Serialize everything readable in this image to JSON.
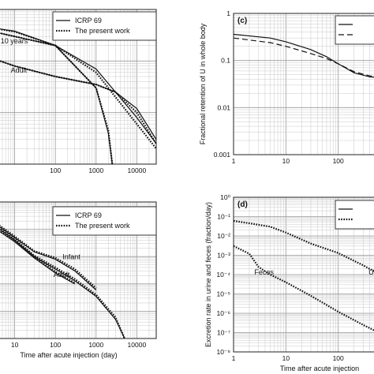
{
  "chart_data": [
    {
      "id": "a",
      "type": "line",
      "panel_label": "",
      "xscale": "log",
      "yscale": "log",
      "xlim": [
        1,
        30000
      ],
      "ylim": [
        0.001,
        1
      ],
      "x_ticks": [
        {
          "value": 100,
          "label": "100"
        },
        {
          "value": 1000,
          "label": "1000"
        },
        {
          "value": 10000,
          "label": "10000"
        }
      ],
      "y_ticks": [],
      "xlabel": "",
      "ylabel": "",
      "grid": true,
      "legend": {
        "placement": "top-right",
        "entries": [
          {
            "label": "ICRP 69",
            "style": "solid"
          },
          {
            "label": "The present work",
            "style": "dotted"
          }
        ]
      },
      "annotations": [
        {
          "text": "10 years",
          "at": [
            4.5,
            0.22
          ]
        },
        {
          "text": "Adult",
          "at": [
            8,
            0.06
          ]
        }
      ],
      "series": [
        {
          "style": "solid",
          "points": [
            [
              1,
              0.5
            ],
            [
              10,
              0.38
            ],
            [
              100,
              0.2
            ],
            [
              1000,
              0.03
            ],
            [
              2000,
              0.004
            ],
            [
              2500,
              0.001
            ]
          ]
        },
        {
          "style": "dotted",
          "points": [
            [
              1,
              0.5
            ],
            [
              10,
              0.37
            ],
            [
              100,
              0.2
            ],
            [
              1000,
              0.03
            ],
            [
              2000,
              0.0045
            ],
            [
              2500,
              0.001
            ]
          ]
        },
        {
          "style": "solid",
          "points": [
            [
              1,
              0.45
            ],
            [
              10,
              0.3
            ],
            [
              100,
              0.2
            ],
            [
              1000,
              0.07
            ],
            [
              3000,
              0.025
            ],
            [
              10000,
              0.008
            ],
            [
              30000,
              0.0025
            ]
          ]
        },
        {
          "style": "dotted",
          "points": [
            [
              1,
              0.45
            ],
            [
              10,
              0.3
            ],
            [
              100,
              0.2
            ],
            [
              1000,
              0.06
            ],
            [
              3000,
              0.02
            ],
            [
              10000,
              0.006
            ],
            [
              30000,
              0.002
            ]
          ]
        },
        {
          "style": "solid",
          "points": [
            [
              1,
              0.15
            ],
            [
              10,
              0.08
            ],
            [
              100,
              0.05
            ],
            [
              1000,
              0.035
            ],
            [
              3000,
              0.025
            ],
            [
              10000,
              0.012
            ],
            [
              30000,
              0.003
            ]
          ]
        },
        {
          "style": "dotted",
          "points": [
            [
              1,
              0.15
            ],
            [
              10,
              0.08
            ],
            [
              100,
              0.05
            ],
            [
              1000,
              0.035
            ],
            [
              3000,
              0.025
            ],
            [
              10000,
              0.01
            ],
            [
              30000,
              0.0025
            ]
          ]
        }
      ]
    },
    {
      "id": "c",
      "type": "line",
      "panel_label": "(c)",
      "xscale": "log",
      "yscale": "log",
      "xlim": [
        1,
        1000
      ],
      "ylim": [
        0.001,
        1
      ],
      "x_ticks": [
        {
          "value": 1,
          "label": "1"
        },
        {
          "value": 10,
          "label": "10"
        },
        {
          "value": 100,
          "label": "100"
        }
      ],
      "y_ticks": [
        {
          "value": 0.001,
          "label": "0.001"
        },
        {
          "value": 0.01,
          "label": "0.01"
        },
        {
          "value": 0.1,
          "label": "0.1"
        },
        {
          "value": 1,
          "label": "1"
        }
      ],
      "xlabel": "",
      "ylabel": "Fractional retention of U in whole body",
      "grid": true,
      "legend": {
        "placement": "top-right",
        "entries": [
          {
            "label": "",
            "style": "solid"
          },
          {
            "label": "",
            "style": "dashed"
          }
        ]
      },
      "annotations": [],
      "series": [
        {
          "style": "solid",
          "points": [
            [
              1,
              0.36
            ],
            [
              5,
              0.3
            ],
            [
              10,
              0.25
            ],
            [
              30,
              0.17
            ],
            [
              60,
              0.12
            ],
            [
              100,
              0.085
            ],
            [
              200,
              0.055
            ],
            [
              400,
              0.045
            ],
            [
              1000,
              0.042
            ]
          ]
        },
        {
          "style": "dashed",
          "points": [
            [
              1,
              0.3
            ],
            [
              5,
              0.24
            ],
            [
              10,
              0.2
            ],
            [
              30,
              0.14
            ],
            [
              60,
              0.11
            ],
            [
              100,
              0.085
            ],
            [
              200,
              0.058
            ],
            [
              400,
              0.047
            ],
            [
              1000,
              0.043
            ]
          ]
        }
      ]
    },
    {
      "id": "b",
      "type": "line",
      "panel_label": "",
      "xscale": "log",
      "yscale": "log",
      "xlim": [
        1,
        30000
      ],
      "ylim": [
        1e-05,
        1
      ],
      "x_ticks": [
        {
          "value": 1,
          "label": "0"
        },
        {
          "value": 10,
          "label": "10"
        },
        {
          "value": 100,
          "label": "100"
        },
        {
          "value": 1000,
          "label": "1000"
        },
        {
          "value": 10000,
          "label": "10000"
        }
      ],
      "y_ticks": [],
      "xlabel": "Time after acute injection (day)",
      "ylabel": "",
      "grid": true,
      "legend": {
        "placement": "top-right",
        "entries": [
          {
            "label": "ICRP 69",
            "style": "solid"
          },
          {
            "label": "The present  work",
            "style": "dotted"
          }
        ]
      },
      "annotations": [
        {
          "text": "Infant",
          "at": [
            150,
            0.008
          ]
        },
        {
          "text": "Adult",
          "at": [
            90,
            0.0018
          ]
        },
        {
          "text": "rears",
          "at": [
            1,
            0.00035
          ]
        }
      ],
      "series": [
        {
          "style": "solid",
          "points": [
            [
              1,
              0.3
            ],
            [
              3,
              0.15
            ],
            [
              10,
              0.04
            ],
            [
              30,
              0.01
            ],
            [
              100,
              0.0035
            ],
            [
              300,
              0.0013
            ],
            [
              1000,
              0.00035
            ],
            [
              3000,
              5e-05
            ],
            [
              5000,
              1e-05
            ]
          ]
        },
        {
          "style": "dotted",
          "points": [
            [
              1,
              0.3
            ],
            [
              3,
              0.16
            ],
            [
              10,
              0.045
            ],
            [
              30,
              0.011
            ],
            [
              100,
              0.004
            ],
            [
              300,
              0.0015
            ],
            [
              1000,
              0.0004
            ],
            [
              3000,
              6e-05
            ],
            [
              5000,
              1e-05
            ]
          ]
        },
        {
          "style": "solid",
          "points": [
            [
              1,
              0.35
            ],
            [
              3,
              0.18
            ],
            [
              10,
              0.05
            ],
            [
              30,
              0.015
            ],
            [
              100,
              0.008
            ],
            [
              300,
              0.003
            ],
            [
              1000,
              0.0006
            ]
          ]
        },
        {
          "style": "dotted",
          "points": [
            [
              1,
              0.35
            ],
            [
              3,
              0.2
            ],
            [
              10,
              0.055
            ],
            [
              30,
              0.016
            ],
            [
              100,
              0.009
            ],
            [
              300,
              0.0035
            ],
            [
              1000,
              0.0007
            ]
          ]
        },
        {
          "style": "solid",
          "points": [
            [
              1,
              0.25
            ],
            [
              3,
              0.12
            ],
            [
              10,
              0.035
            ],
            [
              30,
              0.009
            ],
            [
              100,
              0.0025
            ],
            [
              300,
              0.001
            ]
          ]
        },
        {
          "style": "dotted",
          "points": [
            [
              1,
              0.25
            ],
            [
              3,
              0.13
            ],
            [
              10,
              0.038
            ],
            [
              30,
              0.01
            ],
            [
              100,
              0.0028
            ],
            [
              300,
              0.0011
            ]
          ]
        }
      ]
    },
    {
      "id": "d",
      "type": "line",
      "panel_label": "(d)",
      "xscale": "log",
      "yscale": "log",
      "xlim": [
        1,
        1000
      ],
      "ylim": [
        1e-08,
        1
      ],
      "x_ticks": [
        {
          "value": 1,
          "label": "1"
        },
        {
          "value": 10,
          "label": "10"
        },
        {
          "value": 100,
          "label": "100"
        }
      ],
      "y_ticks": [
        {
          "value": 1e-08,
          "label": "10⁻⁸"
        },
        {
          "value": 1e-07,
          "label": "10⁻⁷"
        },
        {
          "value": 1e-06,
          "label": "10⁻⁶"
        },
        {
          "value": 1e-05,
          "label": "10⁻⁵"
        },
        {
          "value": 0.0001,
          "label": "10⁻⁴"
        },
        {
          "value": 0.001,
          "label": "10⁻³"
        },
        {
          "value": 0.01,
          "label": "10⁻²"
        },
        {
          "value": 0.1,
          "label": "10⁻¹"
        },
        {
          "value": 1,
          "label": "10⁰"
        }
      ],
      "xlabel": "Time after acute injection",
      "ylabel": "Excretion rate in urine and feces (fraction/day)",
      "grid": true,
      "legend": {
        "placement": "top-right",
        "entries": [
          {
            "label": "",
            "style": "solid"
          },
          {
            "label": "",
            "style": "dotted"
          }
        ]
      },
      "annotations": [
        {
          "text": "Feces",
          "at": [
            2.5,
            0.0001
          ]
        },
        {
          "text": "Uri",
          "at": [
            380,
            0.0001
          ]
        }
      ],
      "series": [
        {
          "style": "dotted",
          "points": [
            [
              1,
              0.06
            ],
            [
              2,
              0.045
            ],
            [
              5,
              0.03
            ],
            [
              10,
              0.015
            ],
            [
              30,
              0.004
            ],
            [
              100,
              0.0013
            ],
            [
              300,
              0.0003
            ],
            [
              1000,
              5e-05
            ]
          ]
        },
        {
          "style": "dotted",
          "points": [
            [
              1,
              0.003
            ],
            [
              2,
              0.0012
            ],
            [
              3,
              0.00025
            ],
            [
              5,
              0.0001
            ],
            [
              10,
              4e-05
            ],
            [
              30,
              8e-06
            ],
            [
              100,
              1.2e-06
            ],
            [
              300,
              2.5e-07
            ],
            [
              1000,
              5e-08
            ]
          ]
        }
      ]
    }
  ]
}
